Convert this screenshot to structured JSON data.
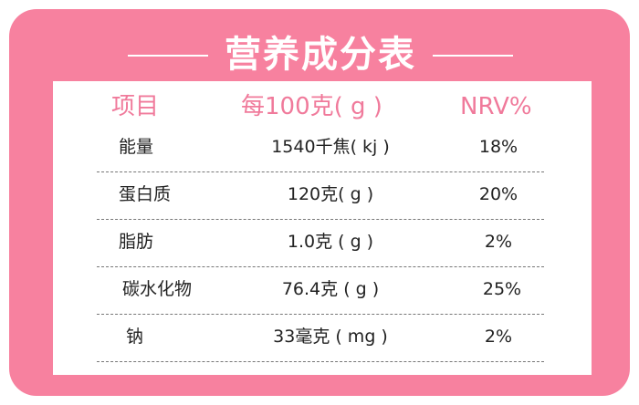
{
  "title": "营养成分表",
  "header": {
    "item": "项目",
    "per100": "每100克( g )",
    "nrv": "NRV%"
  },
  "rows": [
    {
      "name": "能量",
      "value": "1540千焦( kj )",
      "nrv": "18%"
    },
    {
      "name": "蛋白质",
      "value": "120克( g )",
      "nrv": "20%"
    },
    {
      "name": "脂肪",
      "value": "1.0克 ( g )",
      "nrv": "2%"
    },
    {
      "name": "碳水化物",
      "value": "76.4克 ( g )",
      "nrv": "25%"
    },
    {
      "name": "钠",
      "value": "33毫克 ( mg )",
      "nrv": "2%"
    }
  ],
  "colors": {
    "frame": "#f7819f",
    "header_text": "#f07a9b",
    "body_text": "#222222"
  }
}
